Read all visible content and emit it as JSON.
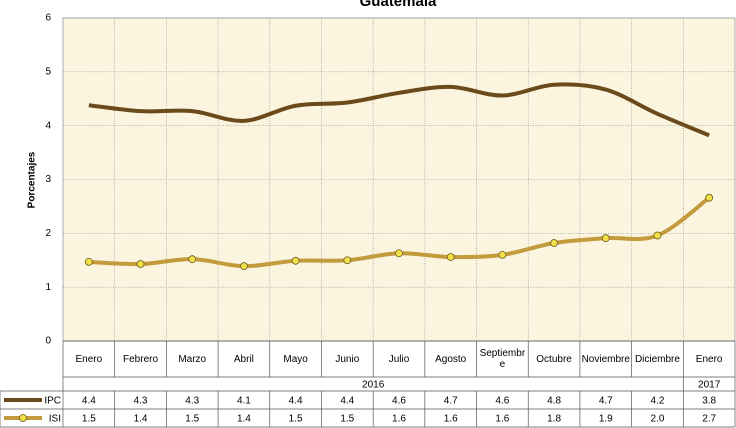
{
  "chart_data": {
    "type": "line",
    "title": "Guatemala",
    "y_label": "Porcentajes",
    "categories": [
      "Enero",
      "Febrero",
      "Marzo",
      "Abril",
      "Mayo",
      "Junio",
      "Julio",
      "Agosto",
      "Septiembre",
      "Octubre",
      "Noviembre",
      "Diciembre",
      "Enero"
    ],
    "x_groups": [
      {
        "label": "2016",
        "size": 12
      },
      {
        "label": "2017",
        "size": 1
      }
    ],
    "series": [
      {
        "name": "IPC",
        "color": "#6b4a1c",
        "values": [
          4.38,
          4.27,
          4.27,
          4.09,
          4.37,
          4.43,
          4.61,
          4.72,
          4.56,
          4.76,
          4.67,
          4.22,
          3.82
        ],
        "value_labels": [
          "4.4",
          "4.3",
          "4.3",
          "4.1",
          "4.4",
          "4.4",
          "4.6",
          "4.7",
          "4.6",
          "4.8",
          "4.7",
          "4.2",
          "3.8"
        ]
      },
      {
        "name": "ISI",
        "color": "#c39a3c",
        "marker_color": "#f2e04a",
        "values": [
          1.47,
          1.43,
          1.52,
          1.39,
          1.49,
          1.5,
          1.63,
          1.56,
          1.6,
          1.82,
          1.91,
          1.96,
          2.66
        ],
        "value_labels": [
          "1.5",
          "1.4",
          "1.5",
          "1.4",
          "1.5",
          "1.5",
          "1.6",
          "1.6",
          "1.6",
          "1.8",
          "1.9",
          "2.0",
          "2.7"
        ]
      }
    ],
    "ylim": [
      0,
      6
    ],
    "yticks": [
      0,
      1,
      2,
      3,
      4,
      5,
      6
    ],
    "grid": true,
    "background": "#fbf4df"
  }
}
